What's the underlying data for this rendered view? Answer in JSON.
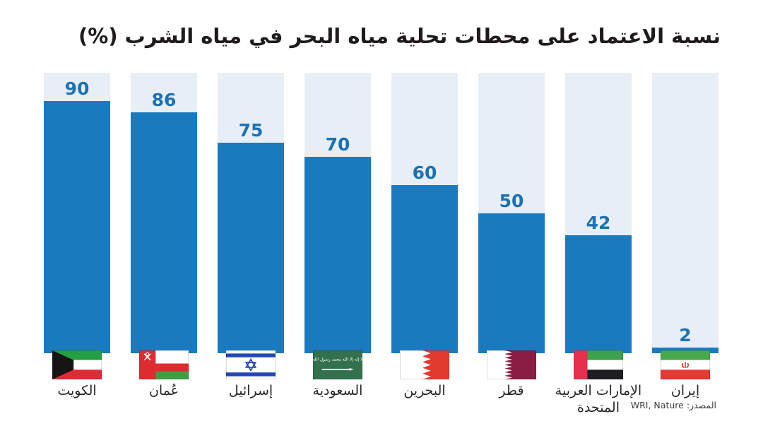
{
  "title": "نسبة الاعتماد على محطات تحلية مياه البحر في مياه الشرب (%)",
  "source": {
    "label": "المصدر:",
    "value": "WRI, Nature"
  },
  "colors": {
    "background": "#ffffff",
    "bar_fill": "#1b7abd",
    "bar_track": "#e7eef5",
    "value_text": "#1d71b3",
    "title_text": "#201b1b",
    "label_text": "#262626",
    "source_text": "#3d3d3d"
  },
  "chart_data": {
    "type": "bar",
    "title": "نسبة الاعتماد على محطات تحلية مياه البحر في مياه الشرب (%)",
    "xlabel": "",
    "ylabel": "",
    "unit": "%",
    "ylim": [
      0,
      100
    ],
    "grid": false,
    "legend": false,
    "value_labels_position": "above-bar",
    "categories": [
      "الكويت",
      "عُمان",
      "إسرائيل",
      "السعودية",
      "البحرين",
      "قطر",
      "الإمارات العربية المتحدة",
      "إيران"
    ],
    "values": [
      90,
      86,
      75,
      70,
      60,
      50,
      42,
      2
    ],
    "bars": [
      {
        "label": "الكويت",
        "value": 90,
        "flag": "kuwait-flag"
      },
      {
        "label": "عُمان",
        "value": 86,
        "flag": "oman-flag"
      },
      {
        "label": "إسرائيل",
        "value": 75,
        "flag": "israel-flag"
      },
      {
        "label": "السعودية",
        "value": 70,
        "flag": "saudi-arabia-flag"
      },
      {
        "label": "البحرين",
        "value": 60,
        "flag": "bahrain-flag"
      },
      {
        "label": "قطر",
        "value": 50,
        "flag": "qatar-flag"
      },
      {
        "label": "الإمارات العربية المتحدة",
        "value": 42,
        "flag": "uae-flag"
      },
      {
        "label": "إيران",
        "value": 2,
        "flag": "iran-flag"
      }
    ],
    "source": "المصدر: WRI, Nature"
  }
}
